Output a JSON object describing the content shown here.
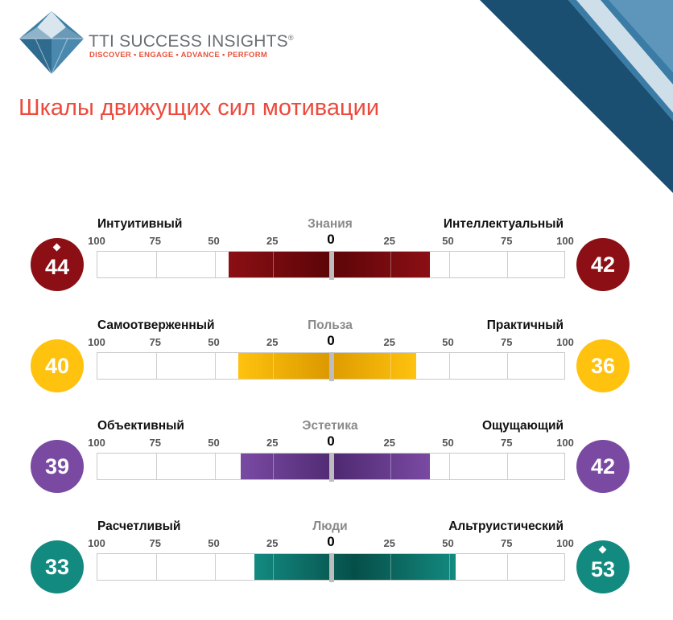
{
  "brand": {
    "name": "TTI SUCCESS INSIGHTS",
    "registered_mark": "®",
    "tagline": "DISCOVER • ENGAGE • ADVANCE • PERFORM",
    "colors": {
      "name": "#6b6f73",
      "tagline": "#e9523d",
      "gem": "#3f7fa6"
    }
  },
  "page_title": "Шкалы движущих сил мотивации",
  "chart_data": {
    "type": "bar",
    "axis_ticks": [
      "100",
      "75",
      "50",
      "25",
      "0",
      "25",
      "50",
      "75",
      "100"
    ],
    "scales": [
      {
        "name": "Знания",
        "left_label": "Интуитивный",
        "right_label": "Интеллектуальный",
        "left_score": 44,
        "right_score": 42,
        "marker_side": "left",
        "color": "#8b0f14",
        "color_dark": "#5c0508"
      },
      {
        "name": "Польза",
        "left_label": "Самоотверженный",
        "right_label": "Практичный",
        "left_score": 40,
        "right_score": 36,
        "marker_side": "none",
        "color": "#ffc20e",
        "color_dark": "#dc9a00"
      },
      {
        "name": "Эстетика",
        "left_label": "Объективный",
        "right_label": "Ощущающий",
        "left_score": 39,
        "right_score": 42,
        "marker_side": "none",
        "color": "#7a4aa3",
        "color_dark": "#4f2a72"
      },
      {
        "name": "Люди",
        "left_label": "Расчетливый",
        "right_label": "Альтруистический",
        "left_score": 33,
        "right_score": 53,
        "marker_side": "right",
        "color": "#138a80",
        "color_dark": "#064f49"
      }
    ]
  }
}
